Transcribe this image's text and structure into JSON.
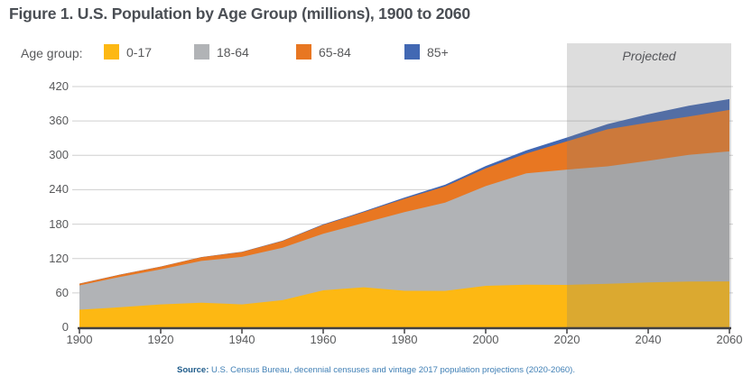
{
  "title": "Figure 1. U.S. Population by Age Group (millions), 1900 to 2060",
  "legend_label": "Age group:",
  "projected_label": "Projected",
  "source": {
    "prefix": "Source:",
    "text": " U.S. Census Bureau, decennial censuses and vintage 2017 population projections (2020-2060)."
  },
  "colors": {
    "title_text": "#4A4E54",
    "axis_text": "#58595B",
    "axis_line": "#414042",
    "gridline": "#CFCFCF",
    "projected_overlay": "rgba(128,128,128,0.27)",
    "source_prefix": "#1F5C8B",
    "source_body": "#3F7FB5"
  },
  "chart_data": {
    "type": "area",
    "stacked": true,
    "title": "Figure 1. U.S. Population by Age Group (millions), 1900 to 2060",
    "xlabel": "",
    "ylabel": "",
    "x": [
      1900,
      1910,
      1920,
      1930,
      1940,
      1950,
      1960,
      1970,
      1980,
      1990,
      2000,
      2010,
      2020,
      2030,
      2040,
      2050,
      2060
    ],
    "xticks": [
      1900,
      1920,
      1940,
      1960,
      1980,
      2000,
      2020,
      2040,
      2060
    ],
    "yticks": [
      0,
      60,
      120,
      180,
      240,
      300,
      360,
      420
    ],
    "ylim": [
      0,
      440
    ],
    "grid": true,
    "legend_position": "top",
    "projected_from": 2020,
    "series": [
      {
        "name": "0-17",
        "color": "#FDB813",
        "values": [
          30.7,
          35.0,
          40.0,
          43.0,
          40.0,
          47.3,
          64.5,
          69.8,
          63.7,
          63.6,
          72.3,
          74.2,
          73.9,
          75.9,
          78.2,
          79.9,
          80.1
        ]
      },
      {
        "name": "18-64",
        "color": "#B1B3B6",
        "values": [
          42.5,
          53.0,
          61.0,
          72.8,
          82.8,
          91.6,
          98.6,
          112.3,
          137.2,
          153.9,
          174.1,
          194.3,
          201.3,
          204.9,
          212.2,
          220.8,
          226.8
        ]
      },
      {
        "name": "65-84",
        "color": "#E87722",
        "values": [
          3.0,
          3.9,
          4.8,
          6.4,
          8.6,
          11.7,
          15.6,
          18.7,
          23.3,
          28.2,
          30.8,
          34.8,
          49.3,
          64.6,
          66.7,
          66.9,
          72.3
        ]
      },
      {
        "name": "85+",
        "color": "#4268B3",
        "values": [
          0.1,
          0.2,
          0.2,
          0.3,
          0.4,
          0.6,
          0.9,
          1.5,
          2.2,
          3.0,
          4.2,
          5.5,
          6.7,
          9.1,
          14.6,
          19.0,
          19.0
        ]
      }
    ]
  }
}
